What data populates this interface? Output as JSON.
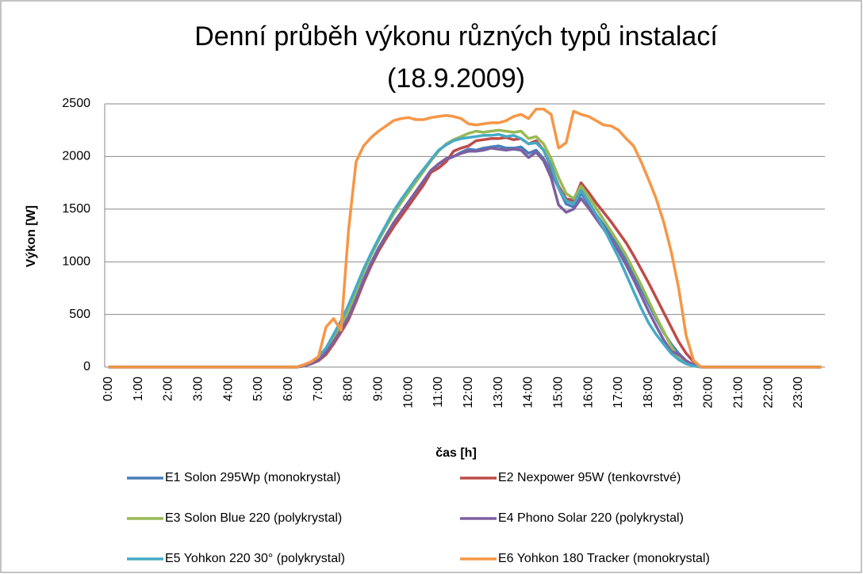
{
  "chart_data": {
    "type": "line",
    "title": "Denní průběh výkonu různých typů instalací",
    "subtitle": "(18.9.2009)",
    "x_label": "čas [h]",
    "y_label": "Výkon [W]",
    "categories": [
      "0:00",
      null,
      null,
      null,
      "1:00",
      null,
      null,
      null,
      "2:00",
      null,
      null,
      null,
      "3:00",
      null,
      null,
      null,
      "4:00",
      null,
      null,
      null,
      "5:00",
      null,
      null,
      null,
      "6:00",
      null,
      null,
      null,
      "7:00",
      null,
      null,
      null,
      "8:00",
      null,
      null,
      null,
      "9:00",
      null,
      null,
      null,
      "10:00",
      null,
      null,
      null,
      "11:00",
      null,
      null,
      null,
      "12:00",
      null,
      null,
      null,
      "13:00",
      null,
      null,
      null,
      "14:00",
      null,
      null,
      null,
      "15:00",
      null,
      null,
      null,
      "16:00",
      null,
      null,
      null,
      "17:00",
      null,
      null,
      null,
      "18:00",
      null,
      null,
      null,
      "19:00",
      null,
      null,
      null,
      "20:00",
      null,
      null,
      null,
      "21:00",
      null,
      null,
      null,
      "22:00",
      null,
      null,
      null,
      "23:00",
      null,
      null,
      null
    ],
    "ylim": [
      0,
      2500
    ],
    "yticks": [
      0,
      500,
      1000,
      1500,
      2000,
      2500
    ],
    "grid": true,
    "legend": "bottom",
    "series": [
      {
        "name": "E1 Solon 295Wp (monokrystal)",
        "color": "#4a7ebb",
        "values": [
          0,
          0,
          0,
          0,
          0,
          0,
          0,
          0,
          0,
          0,
          0,
          0,
          0,
          0,
          0,
          0,
          0,
          0,
          0,
          0,
          0,
          0,
          0,
          0,
          0,
          0,
          10,
          30,
          70,
          140,
          250,
          360,
          480,
          650,
          830,
          990,
          1130,
          1250,
          1360,
          1460,
          1560,
          1660,
          1760,
          1850,
          1930,
          1970,
          2000,
          2040,
          2070,
          2060,
          2080,
          2090,
          2100,
          2080,
          2080,
          2090,
          2030,
          2060,
          1980,
          1850,
          1700,
          1550,
          1520,
          1650,
          1550,
          1450,
          1350,
          1250,
          1150,
          1020,
          880,
          740,
          600,
          460,
          330,
          220,
          130,
          60,
          20,
          0,
          0,
          0,
          0,
          0,
          0,
          0,
          0,
          0,
          0,
          0,
          0,
          0,
          0,
          0,
          0,
          0
        ]
      },
      {
        "name": "E2 Nexpower 95W (tenkovrstvé)",
        "color": "#be4b48",
        "values": [
          0,
          0,
          0,
          0,
          0,
          0,
          0,
          0,
          0,
          0,
          0,
          0,
          0,
          0,
          0,
          0,
          0,
          0,
          0,
          0,
          0,
          0,
          0,
          0,
          0,
          0,
          10,
          30,
          60,
          120,
          220,
          330,
          450,
          620,
          800,
          960,
          1100,
          1220,
          1330,
          1430,
          1530,
          1630,
          1730,
          1850,
          1890,
          1950,
          2050,
          2080,
          2100,
          2150,
          2160,
          2170,
          2170,
          2180,
          2160,
          2170,
          2120,
          2150,
          2060,
          1900,
          1720,
          1600,
          1580,
          1750,
          1660,
          1560,
          1470,
          1380,
          1280,
          1180,
          1060,
          930,
          800,
          660,
          520,
          380,
          240,
          130,
          50,
          0,
          0,
          0,
          0,
          0,
          0,
          0,
          0,
          0,
          0,
          0,
          0,
          0,
          0,
          0,
          0,
          0
        ]
      },
      {
        "name": "E3 Solon Blue 220 (polykrystal)",
        "color": "#98b954",
        "values": [
          0,
          0,
          0,
          0,
          0,
          0,
          0,
          0,
          0,
          0,
          0,
          0,
          0,
          0,
          0,
          0,
          0,
          0,
          0,
          0,
          0,
          0,
          0,
          0,
          0,
          0,
          10,
          40,
          80,
          160,
          280,
          400,
          540,
          720,
          900,
          1060,
          1200,
          1330,
          1450,
          1560,
          1660,
          1760,
          1860,
          1960,
          2050,
          2120,
          2160,
          2190,
          2220,
          2240,
          2230,
          2240,
          2250,
          2240,
          2230,
          2240,
          2170,
          2190,
          2120,
          1980,
          1800,
          1650,
          1600,
          1720,
          1620,
          1510,
          1400,
          1290,
          1180,
          1060,
          920,
          780,
          630,
          480,
          340,
          200,
          80,
          40,
          20,
          0,
          0,
          0,
          0,
          0,
          0,
          0,
          0,
          0,
          0,
          0,
          0,
          0,
          0,
          0,
          0,
          0
        ]
      },
      {
        "name": "E4 Phono Solar 220 (polykrystal)",
        "color": "#7d60a0",
        "values": [
          0,
          0,
          0,
          0,
          0,
          0,
          0,
          0,
          0,
          0,
          0,
          0,
          0,
          0,
          0,
          0,
          0,
          0,
          0,
          0,
          0,
          0,
          0,
          0,
          0,
          0,
          10,
          30,
          70,
          140,
          240,
          350,
          470,
          640,
          820,
          980,
          1120,
          1250,
          1370,
          1470,
          1570,
          1670,
          1770,
          1870,
          1930,
          1980,
          2000,
          2030,
          2050,
          2050,
          2060,
          2080,
          2070,
          2060,
          2070,
          2060,
          1990,
          2040,
          1960,
          1800,
          1540,
          1470,
          1500,
          1600,
          1510,
          1410,
          1310,
          1210,
          1100,
          970,
          830,
          680,
          530,
          390,
          260,
          150,
          120,
          60,
          20,
          0,
          0,
          0,
          0,
          0,
          0,
          0,
          0,
          0,
          0,
          0,
          0,
          0,
          0,
          0,
          0,
          0
        ]
      },
      {
        "name": "E5 Yohkon 220 30° (polykrystal)",
        "color": "#46aac5",
        "values": [
          0,
          0,
          0,
          0,
          0,
          0,
          0,
          0,
          0,
          0,
          0,
          0,
          0,
          0,
          0,
          0,
          0,
          0,
          0,
          0,
          0,
          0,
          0,
          0,
          0,
          0,
          20,
          50,
          100,
          180,
          310,
          440,
          590,
          760,
          930,
          1080,
          1220,
          1350,
          1480,
          1590,
          1690,
          1790,
          1880,
          1970,
          2060,
          2110,
          2150,
          2170,
          2180,
          2190,
          2200,
          2200,
          2210,
          2190,
          2200,
          2170,
          2120,
          2130,
          2060,
          1920,
          1700,
          1580,
          1550,
          1680,
          1570,
          1450,
          1320,
          1180,
          1040,
          880,
          720,
          560,
          420,
          310,
          220,
          130,
          70,
          30,
          10,
          0,
          0,
          0,
          0,
          0,
          0,
          0,
          0,
          0,
          0,
          0,
          0,
          0,
          0,
          0,
          0,
          0
        ]
      },
      {
        "name": "E6 Yohkon 180 Tracker (monokrystal)",
        "color": "#f79646",
        "values": [
          0,
          0,
          0,
          0,
          0,
          0,
          0,
          0,
          0,
          0,
          0,
          0,
          0,
          0,
          0,
          0,
          0,
          0,
          0,
          0,
          0,
          0,
          0,
          0,
          0,
          0,
          20,
          50,
          100,
          380,
          460,
          350,
          1300,
          1950,
          2100,
          2180,
          2240,
          2290,
          2340,
          2360,
          2370,
          2350,
          2350,
          2370,
          2380,
          2390,
          2380,
          2360,
          2310,
          2300,
          2310,
          2320,
          2320,
          2340,
          2380,
          2400,
          2360,
          2450,
          2450,
          2400,
          2080,
          2130,
          2430,
          2400,
          2380,
          2340,
          2300,
          2290,
          2250,
          2170,
          2100,
          1950,
          1780,
          1600,
          1380,
          1100,
          750,
          300,
          60,
          0,
          0,
          0,
          0,
          0,
          0,
          0,
          0,
          0,
          0,
          0,
          0,
          0,
          0,
          0,
          0,
          0
        ]
      }
    ]
  }
}
